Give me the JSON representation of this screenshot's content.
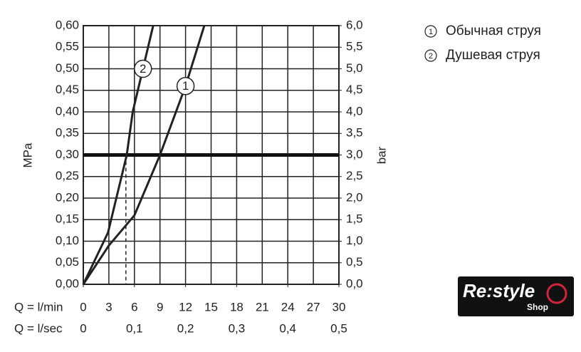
{
  "chart_data": {
    "type": "line",
    "x_label": "Q = l/min",
    "x2_label": "Q = l/sec",
    "y_label": "MPa",
    "y2_label": "bar",
    "xlim": [
      0,
      30
    ],
    "xticks": [
      0,
      3,
      6,
      9,
      12,
      15,
      18,
      21,
      24,
      27,
      30
    ],
    "x2lim": [
      0,
      0.5
    ],
    "x2ticks": [
      0,
      {
        "value": 0.1,
        "label": "0,1"
      },
      {
        "value": 0.2,
        "label": "0,2"
      },
      {
        "value": 0.3,
        "label": "0,3"
      },
      {
        "value": 0.4,
        "label": "0,4"
      },
      {
        "value": 0.5,
        "label": "0,5"
      }
    ],
    "ylim": [
      0,
      0.6
    ],
    "yticks": [
      {
        "value": 0,
        "label": "0,00"
      },
      {
        "value": 0.05,
        "label": "0,05"
      },
      {
        "value": 0.1,
        "label": "0,10"
      },
      {
        "value": 0.15,
        "label": "0,15"
      },
      {
        "value": 0.2,
        "label": "0,20"
      },
      {
        "value": 0.25,
        "label": "0,25"
      },
      {
        "value": 0.3,
        "label": "0,30"
      },
      {
        "value": 0.35,
        "label": "0,35"
      },
      {
        "value": 0.4,
        "label": "0,40"
      },
      {
        "value": 0.45,
        "label": "0,45"
      },
      {
        "value": 0.5,
        "label": "0,50"
      },
      {
        "value": 0.55,
        "label": "0,55"
      },
      {
        "value": 0.6,
        "label": "0,60"
      }
    ],
    "y2lim": [
      0,
      6
    ],
    "y2ticks": [
      {
        "value": 0,
        "label": "0,0"
      },
      {
        "value": 0.5,
        "label": "0,5"
      },
      {
        "value": 1,
        "label": "1,0"
      },
      {
        "value": 1.5,
        "label": "1,5"
      },
      {
        "value": 2,
        "label": "2,0"
      },
      {
        "value": 2.5,
        "label": "2,5"
      },
      {
        "value": 3,
        "label": "3,0"
      },
      {
        "value": 3.5,
        "label": "3,5"
      },
      {
        "value": 4,
        "label": "4,0"
      },
      {
        "value": 4.5,
        "label": "4,5"
      },
      {
        "value": 5,
        "label": "5,0"
      },
      {
        "value": 5.5,
        "label": "5,5"
      },
      {
        "value": 6,
        "label": "6,0"
      }
    ],
    "grid": true,
    "legend": "top-right",
    "reference_line": 0.3,
    "drop_lines": [
      {
        "x": 5.0,
        "y": 0.3
      },
      {
        "x": 9,
        "y": 0.3
      }
    ],
    "series": [
      {
        "name": "Обычная струя",
        "marker": "1",
        "color": "#222222",
        "x": [
          0,
          3,
          6,
          9,
          12,
          14.2
        ],
        "values": [
          0,
          0.09,
          0.16,
          0.3,
          0.46,
          0.6
        ]
      },
      {
        "name": "Душевая струя",
        "marker": "2",
        "color": "#222222",
        "x": [
          0,
          2.9,
          5.1,
          5.8,
          7,
          8.2
        ],
        "values": [
          0,
          0.12,
          0.3,
          0.4,
          0.5,
          0.6
        ]
      }
    ]
  },
  "logo": {
    "text": "Re:style",
    "sub": "Shop"
  }
}
